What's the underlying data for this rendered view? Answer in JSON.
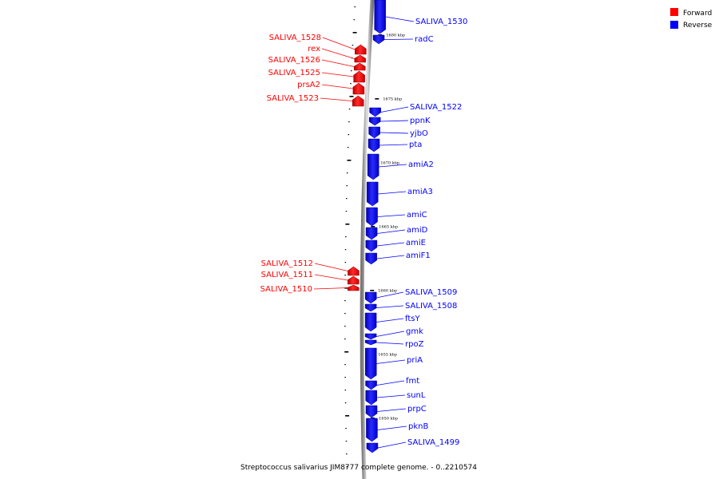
{
  "caption": "Streptococcus salivarius JIM8777 complete genome. - 0..2210574",
  "legend": [
    {
      "label": "Forward",
      "color": "#ff0000"
    },
    {
      "label": "Reverse",
      "color": "#0000ff"
    }
  ],
  "colors": {
    "forward": "#ff0000",
    "reverse": "#0000ff",
    "backbone": "#999999"
  },
  "scale_labels": [
    "1680 kbp",
    "1675 kbp",
    "1670 kbp",
    "1665 kbp",
    "1660 kbp",
    "1655 kbp",
    "1650 kbp"
  ],
  "genes": [
    {
      "name": "SALIVA_1530",
      "strand": "reverse"
    },
    {
      "name": "radC",
      "strand": "reverse"
    },
    {
      "name": "SALIVA_1528",
      "strand": "forward"
    },
    {
      "name": "rex",
      "strand": "forward"
    },
    {
      "name": "SALIVA_1526",
      "strand": "forward"
    },
    {
      "name": "SALIVA_1525",
      "strand": "forward"
    },
    {
      "name": "prsA2",
      "strand": "forward"
    },
    {
      "name": "SALIVA_1523",
      "strand": "forward"
    },
    {
      "name": "SALIVA_1522",
      "strand": "reverse"
    },
    {
      "name": "ppnK",
      "strand": "reverse"
    },
    {
      "name": "yjbO",
      "strand": "reverse"
    },
    {
      "name": "pta",
      "strand": "reverse"
    },
    {
      "name": "amiA2",
      "strand": "reverse"
    },
    {
      "name": "amiA3",
      "strand": "reverse"
    },
    {
      "name": "amiC",
      "strand": "reverse"
    },
    {
      "name": "amiD",
      "strand": "reverse"
    },
    {
      "name": "amiE",
      "strand": "reverse"
    },
    {
      "name": "amiF1",
      "strand": "reverse"
    },
    {
      "name": "SALIVA_1512",
      "strand": "forward"
    },
    {
      "name": "SALIVA_1511",
      "strand": "forward"
    },
    {
      "name": "SALIVA_1510",
      "strand": "forward"
    },
    {
      "name": "SALIVA_1509",
      "strand": "reverse"
    },
    {
      "name": "SALIVA_1508",
      "strand": "reverse"
    },
    {
      "name": "ftsY",
      "strand": "reverse"
    },
    {
      "name": "gmk",
      "strand": "reverse"
    },
    {
      "name": "rpoZ",
      "strand": "reverse"
    },
    {
      "name": "priA",
      "strand": "reverse"
    },
    {
      "name": "fmt",
      "strand": "reverse"
    },
    {
      "name": "sunL",
      "strand": "reverse"
    },
    {
      "name": "prpC",
      "strand": "reverse"
    },
    {
      "name": "pknB",
      "strand": "reverse"
    },
    {
      "name": "SALIVA_1499",
      "strand": "reverse"
    }
  ]
}
